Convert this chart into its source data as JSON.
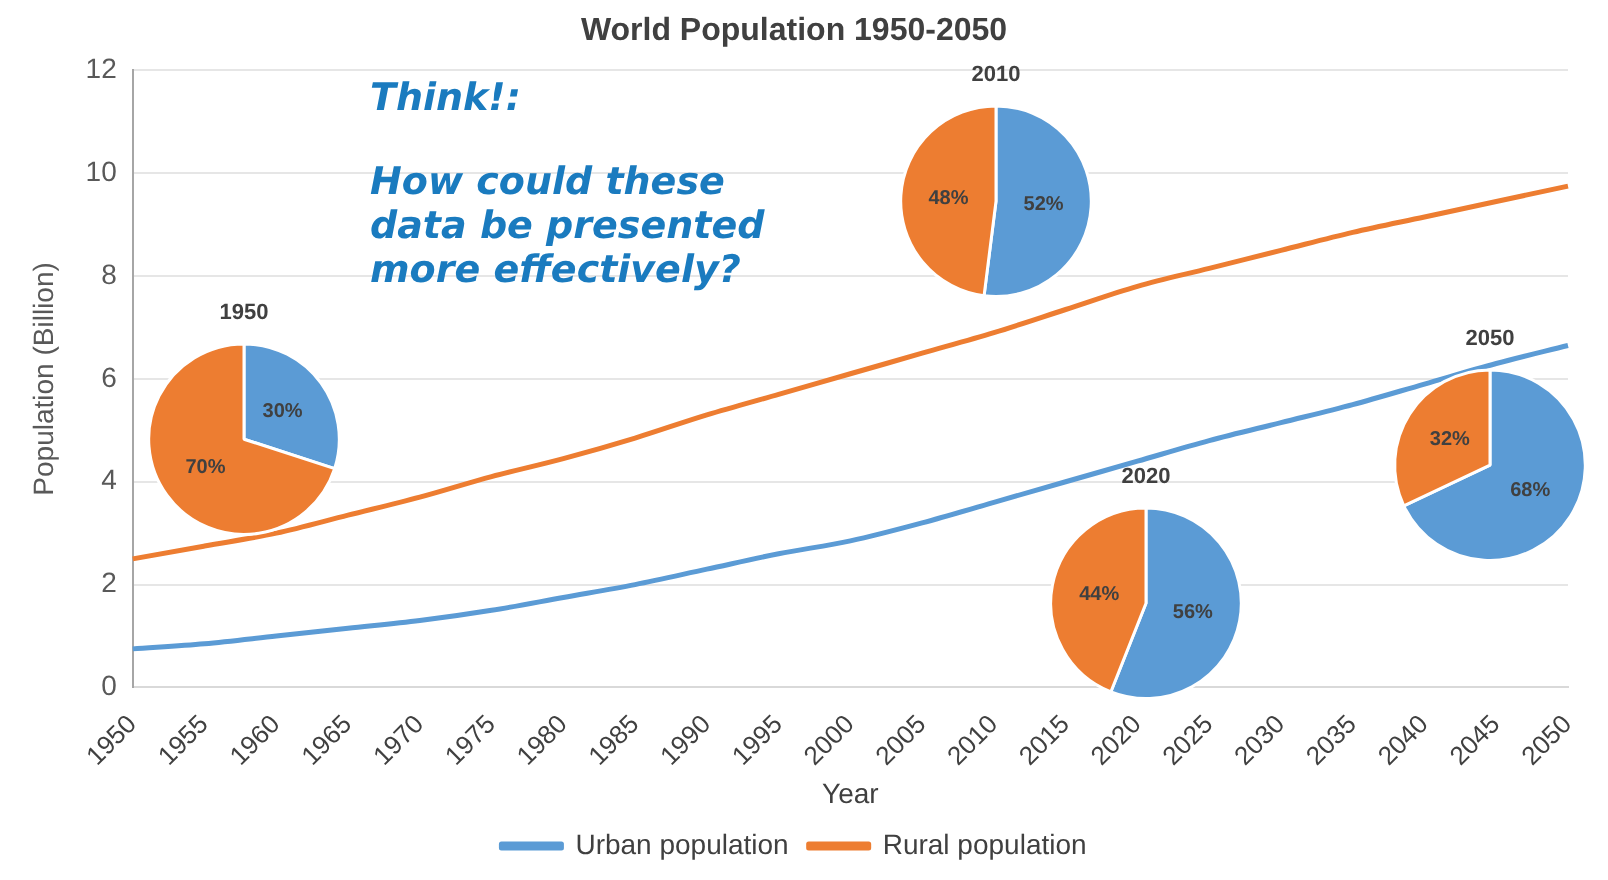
{
  "chart_data": [
    {
      "type": "line",
      "title": "World Population 1950-2050",
      "xlabel": "Year",
      "ylabel": "Population (Billion)",
      "categories": [
        "1950",
        "1955",
        "1960",
        "1965",
        "1970",
        "1975",
        "1980",
        "1985",
        "1990",
        "1995",
        "2000",
        "2005",
        "2010",
        "2015",
        "2020",
        "2025",
        "2030",
        "2035",
        "2040",
        "2045",
        "2050"
      ],
      "series": [
        {
          "name": "Urban population",
          "color": "#5b9bd5",
          "values": [
            0.75,
            0.85,
            1.0,
            1.15,
            1.3,
            1.5,
            1.75,
            2.0,
            2.3,
            2.6,
            2.85,
            3.2,
            3.6,
            4.0,
            4.4,
            4.8,
            5.15,
            5.5,
            5.9,
            6.3,
            6.65
          ]
        },
        {
          "name": "Rural population",
          "color": "#ed7d31",
          "values": [
            2.5,
            2.75,
            3.0,
            3.35,
            3.7,
            4.1,
            4.45,
            4.85,
            5.3,
            5.7,
            6.1,
            6.5,
            6.9,
            7.35,
            7.8,
            8.15,
            8.5,
            8.85,
            9.15,
            9.45,
            9.75
          ]
        }
      ],
      "ylim": [
        0,
        12
      ],
      "yticks": [
        0,
        2,
        4,
        6,
        8,
        10,
        12
      ],
      "grid": "y",
      "legend": "bottom",
      "marker": "none",
      "line_style": "solid",
      "annotations": [
        "Think!:",
        "How could these data be presented more effectively?"
      ]
    },
    {
      "type": "pie",
      "title": "1950",
      "categories": [
        null,
        null
      ],
      "values": [
        30,
        70
      ],
      "colors": [
        "#5b9bd5",
        "#ed7d31"
      ],
      "value_labels": [
        "30%",
        "70%"
      ]
    },
    {
      "type": "pie",
      "title": "2010",
      "categories": [
        null,
        null
      ],
      "values": [
        52,
        48
      ],
      "colors": [
        "#5b9bd5",
        "#ed7d31"
      ],
      "value_labels": [
        "52%",
        "48%"
      ]
    },
    {
      "type": "pie",
      "title": "2020",
      "categories": [
        null,
        null
      ],
      "values": [
        56,
        44
      ],
      "colors": [
        "#5b9bd5",
        "#ed7d31"
      ],
      "value_labels": [
        "56%",
        "44%"
      ]
    },
    {
      "type": "pie",
      "title": "2050",
      "categories": [
        null,
        null
      ],
      "values": [
        68,
        32
      ],
      "colors": [
        "#5b9bd5",
        "#ed7d31"
      ],
      "value_labels": [
        "68%",
        "32%"
      ]
    }
  ]
}
